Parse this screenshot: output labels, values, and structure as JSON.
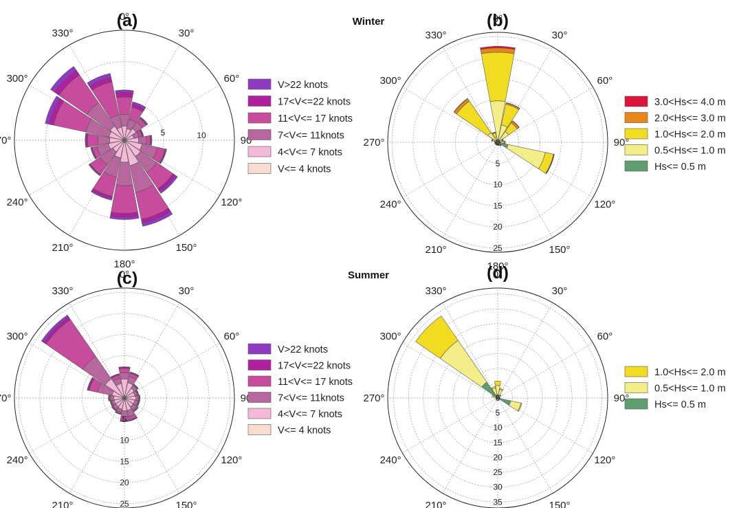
{
  "headings": {
    "winter": "Winter",
    "summer": "Summer"
  },
  "chart_data": [
    {
      "type": "rose",
      "panel": "(a)",
      "variable": "wind speed",
      "angle_labels": [
        "0°",
        "30°",
        "60°",
        "90°",
        "120°",
        "150°",
        "180°",
        "210°",
        "240°",
        "270°",
        "300°",
        "330°"
      ],
      "ring_values": [
        5,
        10
      ],
      "ring_labels": [
        "5",
        "10"
      ],
      "radial_max": 14,
      "directions": [
        0,
        22.5,
        45,
        67.5,
        90,
        112.5,
        135,
        157.5,
        180,
        202.5,
        225,
        247.5,
        270,
        292.5,
        315,
        337.5
      ],
      "legend": [
        "V>22 knots",
        "17<V<=22 knots",
        "11<V<= 17 knots",
        "7<V<= 11knots",
        "4<V<= 7 knots",
        "V<= 4 knots"
      ],
      "series": [
        {
          "name": "V<= 4 knots",
          "color": "#f8dcd0",
          "values": [
            0.3,
            0.3,
            0.3,
            0.3,
            0.3,
            0.3,
            0.3,
            0.3,
            0.3,
            0.3,
            0.3,
            0.3,
            0.3,
            0.3,
            0.3,
            0.3
          ]
        },
        {
          "name": "4<V<= 7 knots",
          "color": "#f4b8d8",
          "values": [
            1.5,
            1.2,
            1.5,
            0.9,
            1.5,
            2.0,
            2.2,
            3.0,
            2.5,
            2.0,
            1.5,
            1.8,
            1.6,
            1.7,
            1.9,
            1.4
          ]
        },
        {
          "name": "7<V<= 11knots",
          "color": "#b8669e",
          "values": [
            1.5,
            1.2,
            1.0,
            0.7,
            1.0,
            2.0,
            2.5,
            3.5,
            3.0,
            2.5,
            2.0,
            1.5,
            1.5,
            3.0,
            3.6,
            1.6
          ]
        },
        {
          "name": "11<V<= 17 knots",
          "color": "#c84c9e",
          "values": [
            2.2,
            1.6,
            0.6,
            0.4,
            0.5,
            1.0,
            2.5,
            3.5,
            3.5,
            2.5,
            1.5,
            0.6,
            1.3,
            4.2,
            4.3,
            4.3
          ]
        },
        {
          "name": "17<V<=22 knots",
          "color": "#b0209e",
          "values": [
            0.6,
            0.4,
            0.1,
            0.1,
            0.1,
            0.1,
            0.4,
            0.5,
            0.5,
            0.3,
            0.1,
            0.1,
            0.2,
            0.6,
            0.7,
            0.6
          ]
        },
        {
          "name": "V>22 knots",
          "color": "#8e3ac2",
          "values": [
            0.3,
            0.3,
            0.1,
            0.1,
            0.1,
            0.1,
            0.3,
            0.4,
            0.3,
            0.2,
            0.1,
            0.1,
            0.1,
            0.5,
            0.6,
            0.5
          ]
        }
      ]
    },
    {
      "type": "rose",
      "panel": "(b)",
      "variable": "significant wave height",
      "angle_labels": [
        "0°",
        "30°",
        "60°",
        "90°",
        "120°",
        "150°",
        "180°",
        "210°",
        "240°",
        "270°",
        "300°",
        "330°"
      ],
      "ring_values": [
        0,
        5,
        10,
        15,
        20,
        25
      ],
      "ring_labels": [
        "0",
        "5",
        "10",
        "15",
        "20",
        "25"
      ],
      "radial_max": 26,
      "directions": [
        0,
        22.5,
        45,
        67.5,
        90,
        112.5,
        135,
        157.5,
        180,
        202.5,
        225,
        247.5,
        270,
        292.5,
        315,
        337.5
      ],
      "legend": [
        "3.0<Hs<= 4.0 m",
        "2.0<Hs<= 3.0 m",
        "1.0<Hs<= 2.0 m",
        "0.5<Hs<= 1.0 m",
        "Hs<= 0.5 m"
      ],
      "series": [
        {
          "name": "Hs<= 0.5 m",
          "color": "#5e9e6e",
          "values": [
            0.3,
            0.4,
            0.6,
            0.4,
            0.8,
            2.5,
            0.5,
            0.3,
            0.3,
            0.3,
            0.3,
            0.3,
            0.3,
            0.3,
            0.3,
            0.3
          ]
        },
        {
          "name": "0.5<Hs<= 1.0 m",
          "color": "#f4ee88",
          "values": [
            9.5,
            3.8,
            2.5,
            0.5,
            0.5,
            9.0,
            0.3,
            0.2,
            0.1,
            0.1,
            0.1,
            0.1,
            0.1,
            0.5,
            2.5,
            1.0
          ]
        },
        {
          "name": "1.0<Hs<= 2.0 m",
          "color": "#f2dc22",
          "values": [
            11.5,
            5.0,
            2.5,
            0.3,
            0.3,
            2.0,
            0.1,
            0.1,
            0.1,
            0.1,
            0.1,
            0.1,
            0.1,
            0.5,
            9.0,
            1.0
          ]
        },
        {
          "name": "2.0<Hs<= 3.0 m",
          "color": "#e8861a",
          "values": [
            1.0,
            0.3,
            0.5,
            0.1,
            0.1,
            0.1,
            0.1,
            0.1,
            0.1,
            0.1,
            0.1,
            0.1,
            0.1,
            0.1,
            0.7,
            0.1
          ]
        },
        {
          "name": "3.0<Hs<= 4.0 m",
          "color": "#dc143c",
          "values": [
            0.4,
            0.1,
            0.1,
            0.1,
            0.1,
            0.1,
            0.1,
            0.1,
            0.1,
            0.1,
            0.1,
            0.1,
            0.1,
            0.1,
            0.1,
            0.1
          ]
        }
      ]
    },
    {
      "type": "rose",
      "panel": "(c)",
      "variable": "wind speed",
      "angle_labels": [
        "0°",
        "30°",
        "60°",
        "90°",
        "120°",
        "150°",
        "180°",
        "210°",
        "240°",
        "270°",
        "300°",
        "330°"
      ],
      "ring_values": [
        5,
        10,
        15,
        20,
        25
      ],
      "ring_labels": [
        "5",
        "10",
        "15",
        "20",
        "25"
      ],
      "radial_max": 26,
      "directions": [
        0,
        22.5,
        45,
        67.5,
        90,
        112.5,
        135,
        157.5,
        180,
        202.5,
        225,
        247.5,
        270,
        292.5,
        315,
        337.5
      ],
      "legend": [
        "V>22 knots",
        "17<V<=22 knots",
        "11<V<= 17 knots",
        "7<V<= 11knots",
        "4<V<= 7 knots",
        "V<= 4 knots"
      ],
      "series": [
        {
          "name": "V<= 4 knots",
          "color": "#f8dcd0",
          "values": [
            0.5,
            0.5,
            0.5,
            0.5,
            0.5,
            0.5,
            0.5,
            0.5,
            0.5,
            0.5,
            0.5,
            0.5,
            0.5,
            0.5,
            0.5,
            0.5
          ]
        },
        {
          "name": "4<V<= 7 knots",
          "color": "#f4b8d8",
          "values": [
            4.0,
            3.2,
            2.3,
            2.0,
            2.2,
            2.0,
            2.0,
            2.5,
            2.5,
            2.2,
            2.0,
            2.0,
            2.0,
            2.5,
            5.0,
            3.0
          ]
        },
        {
          "name": "7<V<= 11knots",
          "color": "#b8669e",
          "values": [
            1.5,
            1.5,
            0.8,
            0.6,
            0.6,
            0.8,
            1.0,
            1.5,
            1.5,
            0.8,
            0.8,
            0.6,
            0.8,
            3.5,
            6.5,
            1.3
          ]
        },
        {
          "name": "11<V<= 17 knots",
          "color": "#c84c9e",
          "values": [
            1.0,
            0.8,
            0.2,
            0.2,
            0.2,
            0.2,
            0.3,
            0.8,
            0.8,
            0.3,
            0.2,
            0.2,
            0.3,
            2.0,
            10.5,
            0.8
          ]
        },
        {
          "name": "17<V<=22 knots",
          "color": "#b0209e",
          "values": [
            0.3,
            0.2,
            0.1,
            0.1,
            0.1,
            0.1,
            0.1,
            0.2,
            0.2,
            0.1,
            0.1,
            0.1,
            0.1,
            0.3,
            0.7,
            0.2
          ]
        },
        {
          "name": "V>22 knots",
          "color": "#8e3ac2",
          "values": [
            0.1,
            0.1,
            0.1,
            0.1,
            0.1,
            0.1,
            0.1,
            0.1,
            0.1,
            0.1,
            0.1,
            0.1,
            0.1,
            0.2,
            0.6,
            0.1
          ]
        }
      ]
    },
    {
      "type": "rose",
      "panel": "(d)",
      "variable": "significant wave height",
      "angle_labels": [
        "0°",
        "30°",
        "60°",
        "90°",
        "120°",
        "150°",
        "180°",
        "210°",
        "240°",
        "270°",
        "300°",
        "330°"
      ],
      "ring_values": [
        0,
        5,
        10,
        15,
        20,
        25,
        30,
        35
      ],
      "ring_labels": [
        "0",
        "5",
        "10",
        "15",
        "20",
        "25",
        "30",
        "35"
      ],
      "radial_max": 37,
      "directions": [
        0,
        22.5,
        45,
        67.5,
        90,
        112.5,
        135,
        157.5,
        180,
        202.5,
        225,
        247.5,
        270,
        292.5,
        315,
        337.5
      ],
      "legend": [
        "1.0<Hs<= 2.0 m",
        "0.5<Hs<= 1.0 m",
        "Hs<= 0.5 m"
      ],
      "series": [
        {
          "name": "Hs<= 0.5 m",
          "color": "#5e9e6e",
          "values": [
            1.2,
            0.6,
            0.4,
            0.3,
            0.4,
            4.5,
            0.3,
            0.3,
            0.3,
            0.3,
            0.3,
            0.3,
            0.4,
            0.5,
            6.5,
            1.0
          ]
        },
        {
          "name": "0.5<Hs<= 1.0 m",
          "color": "#f4ee88",
          "values": [
            3.0,
            2.4,
            0.8,
            0.3,
            0.3,
            3.5,
            0.3,
            0.1,
            0.1,
            0.1,
            0.1,
            0.1,
            0.1,
            1.0,
            17.0,
            2.5
          ]
        },
        {
          "name": "1.0<Hs<= 2.0 m",
          "color": "#f2dc22",
          "values": [
            1.5,
            0.4,
            0.2,
            0.1,
            0.1,
            0.3,
            0.1,
            0.1,
            0.1,
            0.1,
            0.1,
            0.1,
            0.1,
            0.5,
            10.0,
            0.5
          ]
        }
      ]
    }
  ]
}
